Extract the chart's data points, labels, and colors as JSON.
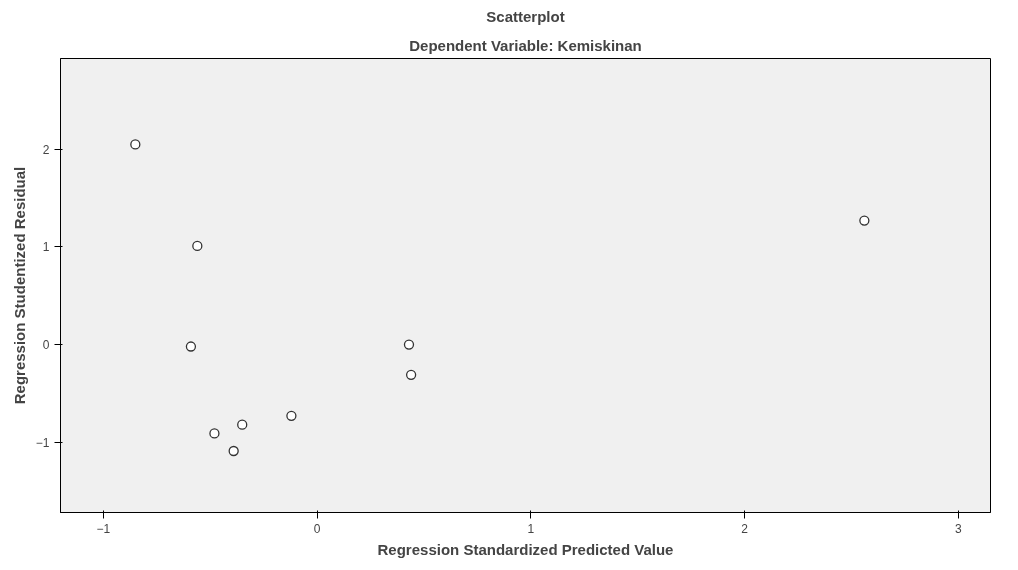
{
  "chart_data": {
    "type": "scatter",
    "title": "Scatterplot",
    "subtitle": "Dependent Variable: Kemiskinan",
    "xlabel": "Regression Standardized Predicted Value",
    "ylabel": "Regression Studentized Residual",
    "x": [
      -0.85,
      -0.56,
      -0.59,
      0.43,
      0.44,
      -0.12,
      -0.35,
      -0.48,
      -0.39,
      2.56
    ],
    "series": [
      {
        "color": "#333333",
        "values": [
          2.05,
          1.01,
          -0.02,
          0.0,
          -0.31,
          -0.73,
          -0.82,
          -0.91,
          -1.09,
          1.27
        ]
      }
    ],
    "xlim": [
      -1.2,
      3.15
    ],
    "ylim": [
      -1.72,
      2.93
    ],
    "xticks": [
      -1,
      0,
      1,
      2,
      3
    ],
    "yticks": [
      -1,
      0,
      1,
      2
    ],
    "marker": "circle",
    "grid": false
  }
}
